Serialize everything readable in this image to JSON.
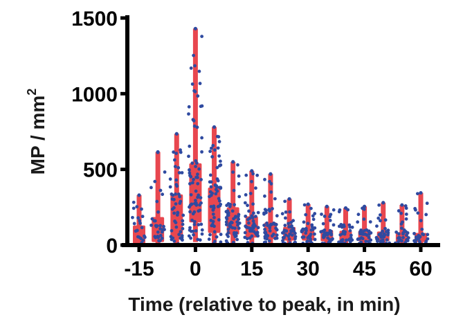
{
  "chart_data": {
    "type": "box-scatter",
    "title": "",
    "xlabel": "Time (relative to peak, in min)",
    "ylabel": "MP / mm",
    "ylabel_superscript": "2",
    "xlim": [
      -20,
      65
    ],
    "ylim": [
      0,
      1500
    ],
    "xticks": [
      -15,
      0,
      15,
      30,
      45,
      60
    ],
    "xtick_labels": [
      "-15",
      "0",
      "15",
      "30",
      "45",
      "60"
    ],
    "yticks": [
      0,
      500,
      1000,
      1500
    ],
    "ytick_labels": [
      "0",
      "500",
      "1000",
      "1500"
    ],
    "colors": {
      "box": "#e8474f",
      "points": "#2f4aa0",
      "axis": "#000000"
    },
    "groups": [
      {
        "x": -15,
        "min": 5,
        "q1": 10,
        "median": 40,
        "q3": 130,
        "max": 330,
        "n": 20
      },
      {
        "x": -10,
        "min": 5,
        "q1": 20,
        "median": 70,
        "q3": 185,
        "max": 615,
        "n": 30
      },
      {
        "x": -5,
        "min": 5,
        "q1": 40,
        "median": 170,
        "q3": 335,
        "max": 735,
        "n": 50
      },
      {
        "x": 0,
        "min": 20,
        "q1": 150,
        "median": 310,
        "q3": 540,
        "max": 1430,
        "n": 75
      },
      {
        "x": 5,
        "min": 10,
        "q1": 80,
        "median": 190,
        "q3": 380,
        "max": 780,
        "n": 60
      },
      {
        "x": 10,
        "min": 10,
        "q1": 70,
        "median": 130,
        "q3": 250,
        "max": 550,
        "n": 55
      },
      {
        "x": 15,
        "min": 10,
        "q1": 50,
        "median": 100,
        "q3": 190,
        "max": 490,
        "n": 50
      },
      {
        "x": 20,
        "min": 10,
        "q1": 40,
        "median": 80,
        "q3": 150,
        "max": 470,
        "n": 45
      },
      {
        "x": 25,
        "min": 10,
        "q1": 30,
        "median": 60,
        "q3": 120,
        "max": 305,
        "n": 40
      },
      {
        "x": 30,
        "min": 10,
        "q1": 30,
        "median": 55,
        "q3": 110,
        "max": 270,
        "n": 38
      },
      {
        "x": 35,
        "min": 10,
        "q1": 25,
        "median": 50,
        "q3": 100,
        "max": 255,
        "n": 36
      },
      {
        "x": 40,
        "min": 10,
        "q1": 25,
        "median": 45,
        "q3": 95,
        "max": 245,
        "n": 34
      },
      {
        "x": 45,
        "min": 10,
        "q1": 25,
        "median": 45,
        "q3": 95,
        "max": 255,
        "n": 33
      },
      {
        "x": 50,
        "min": 10,
        "q1": 25,
        "median": 45,
        "q3": 90,
        "max": 280,
        "n": 32
      },
      {
        "x": 55,
        "min": 10,
        "q1": 20,
        "median": 40,
        "q3": 85,
        "max": 265,
        "n": 30
      },
      {
        "x": 60,
        "min": 10,
        "q1": 20,
        "median": 40,
        "q3": 80,
        "max": 345,
        "n": 28
      }
    ]
  }
}
